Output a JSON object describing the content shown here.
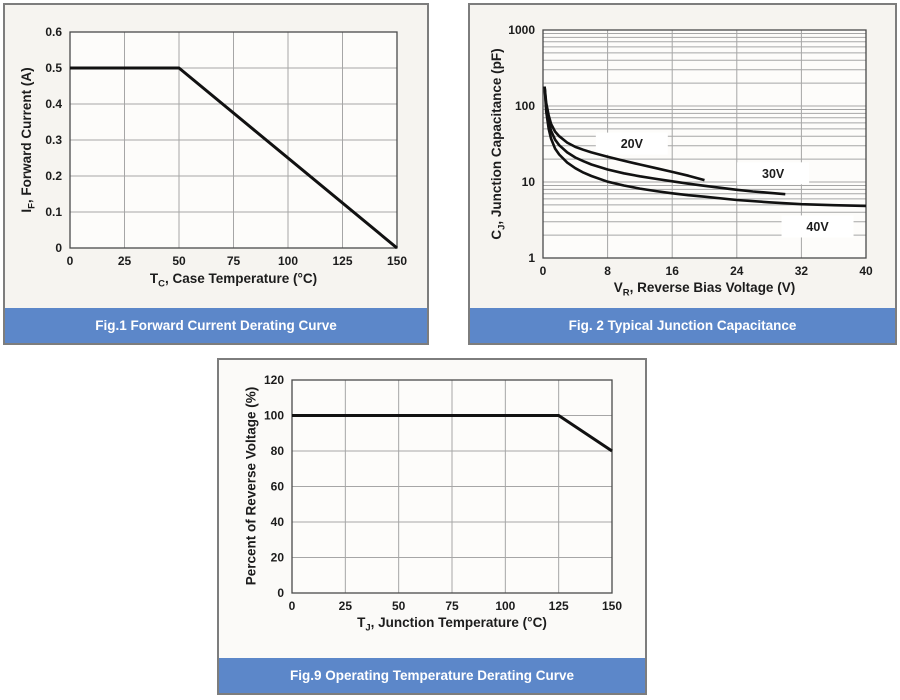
{
  "colors": {
    "caption_bg": "#5c87c9",
    "caption_text": "#ffffff",
    "panel_bg": "#f6f4f0",
    "panel_bg_alt": "#fbfaf8",
    "panel_border": "#7d7d7d",
    "plot_bg": "#fdfcfa",
    "grid": "#a6a6a6",
    "frame": "#4a4a4a",
    "curve": "#111111",
    "text": "#1c1c1c"
  },
  "chart_data": [
    {
      "id": "fig1",
      "type": "line",
      "caption": "Fig.1 Forward Current Derating Curve",
      "xlabel": {
        "base": "T",
        "sub": "C",
        "rest": ", Case Temperature (°C)"
      },
      "ylabel": {
        "base": "I",
        "sub": "F",
        "rest": ", Forward Current (A)"
      },
      "xscale": "linear",
      "yscale": "linear",
      "xlim": [
        0,
        150
      ],
      "ylim": [
        0,
        0.6
      ],
      "xticks": {
        "values": [
          0,
          25,
          50,
          75,
          100,
          125,
          150
        ],
        "labels": [
          "0",
          "25",
          "50",
          "75",
          "100",
          "125",
          "150"
        ]
      },
      "yticks": {
        "values": [
          0,
          0.1,
          0.2,
          0.3,
          0.4,
          0.5,
          0.6
        ],
        "labels": [
          "0",
          "0.1",
          "0.2",
          "0.3",
          "0.4",
          "0.5",
          "0.6"
        ]
      },
      "grid": true,
      "legend": "none",
      "series": [
        {
          "name": "forward-current-derating",
          "points": [
            [
              0,
              0.5
            ],
            [
              50,
              0.5
            ],
            [
              150,
              0
            ]
          ]
        }
      ],
      "annotations": []
    },
    {
      "id": "fig2",
      "type": "line",
      "caption": "Fig. 2 Typical Junction Capacitance",
      "xlabel": {
        "base": "V",
        "sub": "R",
        "rest": ", Reverse Bias Voltage (V)"
      },
      "ylabel": {
        "base": "C",
        "sub": "J",
        "rest": ", Junction Capacitance (pF)"
      },
      "xscale": "linear",
      "yscale": "log",
      "xlim": [
        0,
        40
      ],
      "ylim": [
        1,
        1000
      ],
      "xticks": {
        "values": [
          0,
          8,
          16,
          24,
          32,
          40
        ],
        "labels": [
          "0",
          "8",
          "16",
          "24",
          "32",
          "40"
        ]
      },
      "yticks": {
        "values": [
          1,
          10,
          100,
          1000
        ],
        "labels": [
          "1",
          "10",
          "100",
          "1000"
        ]
      },
      "grid": true,
      "log_minor_grid": true,
      "legend": "inline-labels",
      "series": [
        {
          "name": "20V",
          "points": [
            [
              0.2,
              180
            ],
            [
              0.4,
              110
            ],
            [
              0.7,
              75
            ],
            [
              1,
              58
            ],
            [
              1.5,
              46
            ],
            [
              2,
              40
            ],
            [
              3,
              33
            ],
            [
              4,
              29
            ],
            [
              5,
              26.5
            ],
            [
              6,
              24.5
            ],
            [
              8,
              21.5
            ],
            [
              10,
              19
            ],
            [
              12,
              17
            ],
            [
              14,
              15.2
            ],
            [
              16,
              13.6
            ],
            [
              18,
              12.1
            ],
            [
              20,
              10.6
            ]
          ]
        },
        {
          "name": "30V",
          "points": [
            [
              0.2,
              180
            ],
            [
              0.4,
              98
            ],
            [
              0.7,
              62
            ],
            [
              1,
              47
            ],
            [
              1.5,
              36
            ],
            [
              2,
              30.5
            ],
            [
              3,
              24.5
            ],
            [
              4,
              21
            ],
            [
              5,
              18.8
            ],
            [
              6,
              17
            ],
            [
              8,
              14.6
            ],
            [
              10,
              13
            ],
            [
              12,
              11.9
            ],
            [
              14,
              11
            ],
            [
              16,
              10.2
            ],
            [
              18,
              9.5
            ],
            [
              20,
              8.9
            ],
            [
              22,
              8.4
            ],
            [
              24,
              7.9
            ],
            [
              26,
              7.5
            ],
            [
              28,
              7.2
            ],
            [
              30,
              6.9
            ]
          ]
        },
        {
          "name": "40V",
          "points": [
            [
              0.2,
              180
            ],
            [
              0.4,
              85
            ],
            [
              0.7,
              50
            ],
            [
              1,
              37
            ],
            [
              1.5,
              27.5
            ],
            [
              2,
              23
            ],
            [
              3,
              18
            ],
            [
              4,
              15.2
            ],
            [
              5,
              13.3
            ],
            [
              6,
              12
            ],
            [
              8,
              10.1
            ],
            [
              10,
              9
            ],
            [
              12,
              8.2
            ],
            [
              14,
              7.6
            ],
            [
              16,
              7.1
            ],
            [
              18,
              6.7
            ],
            [
              20,
              6.4
            ],
            [
              24,
              5.8
            ],
            [
              28,
              5.4
            ],
            [
              32,
              5.1
            ],
            [
              36,
              4.95
            ],
            [
              40,
              4.85
            ]
          ]
        }
      ],
      "annotations": [
        {
          "text": "20V",
          "x": 11,
          "y": 32
        },
        {
          "text": "30V",
          "x": 28.5,
          "y": 13
        },
        {
          "text": "40V",
          "x": 34,
          "y": 2.6
        }
      ]
    },
    {
      "id": "fig9",
      "type": "line",
      "caption": "Fig.9 Operating Temperature Derating Curve",
      "xlabel": {
        "base": "T",
        "sub": "J",
        "rest": ", Junction Temperature (°C)"
      },
      "ylabel": {
        "base": "",
        "sub": "",
        "rest": "Percent of Reverse Voltage (%)"
      },
      "xscale": "linear",
      "yscale": "linear",
      "xlim": [
        0,
        150
      ],
      "ylim": [
        0,
        120
      ],
      "xticks": {
        "values": [
          0,
          25,
          50,
          75,
          100,
          125,
          150
        ],
        "labels": [
          "0",
          "25",
          "50",
          "75",
          "100",
          "125",
          "150"
        ]
      },
      "yticks": {
        "values": [
          0,
          20,
          40,
          60,
          80,
          100,
          120
        ],
        "labels": [
          "0",
          "20",
          "40",
          "60",
          "80",
          "100",
          "120"
        ]
      },
      "grid": true,
      "legend": "none",
      "series": [
        {
          "name": "reverse-voltage-derating",
          "points": [
            [
              0,
              100
            ],
            [
              125,
              100
            ],
            [
              150,
              80
            ]
          ]
        }
      ],
      "annotations": []
    }
  ]
}
